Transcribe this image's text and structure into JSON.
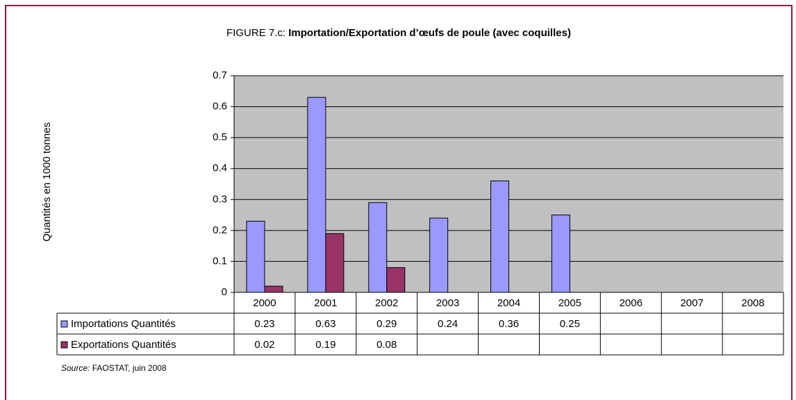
{
  "chart_data": {
    "type": "bar",
    "title_prefix": "FIGURE 7.c:",
    "title": "Importation/Exportation d’œufs de poule (avec coquilles)",
    "y_label": "Quantités en 1000 tonnes",
    "categories": [
      "2000",
      "2001",
      "2002",
      "2003",
      "2004",
      "2005",
      "2006",
      "2007",
      "2008"
    ],
    "series": [
      {
        "name": "Importations Quantités",
        "color": "#9999ff",
        "values": [
          0.23,
          0.63,
          0.29,
          0.24,
          0.36,
          0.25,
          null,
          null,
          null
        ]
      },
      {
        "name": "Exportations Quantités",
        "color": "#993366",
        "values": [
          0.02,
          0.19,
          0.08,
          null,
          null,
          null,
          null,
          null,
          null
        ]
      }
    ],
    "ylim": [
      0,
      0.7
    ],
    "yticks": [
      0,
      0.1,
      0.2,
      0.3,
      0.4,
      0.5,
      0.6,
      0.7
    ],
    "grid": true,
    "source_label": "Source:",
    "source_text": "FAOSTAT, juin 2008"
  }
}
